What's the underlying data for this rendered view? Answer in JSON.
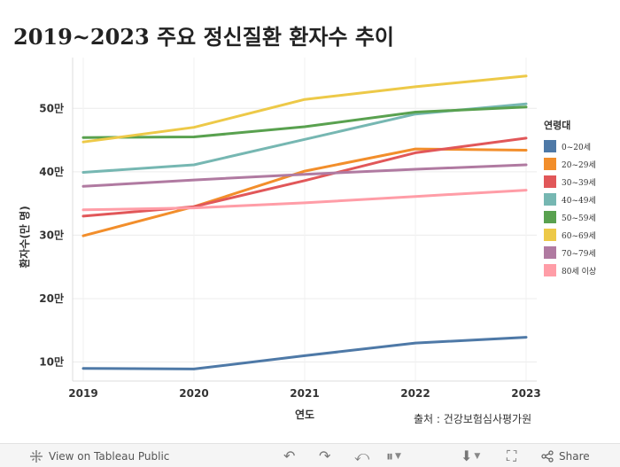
{
  "title": "2019~2023 주요 정신질환 환자수 추이",
  "source": "출처 : 건강보험심사평가원",
  "toolbar": {
    "view_label": "View on Tableau Public",
    "share_label": "Share"
  },
  "chart_data": {
    "type": "line",
    "title": "2019~2023 주요 정신질환 환자수 추이",
    "xlabel": "연도",
    "ylabel": "환자수(만 명)",
    "x": [
      2019,
      2020,
      2021,
      2022,
      2023
    ],
    "ylim": [
      7,
      58
    ],
    "yticks": [
      10,
      20,
      30,
      40,
      50
    ],
    "ytick_labels": [
      "10만",
      "20만",
      "30만",
      "40만",
      "50만"
    ],
    "xtick_labels": [
      "2019",
      "2020",
      "2021",
      "2022",
      "2023"
    ],
    "grid": true,
    "legend_position": "right",
    "legend_title": "연령대",
    "series": [
      {
        "name": "0~20세",
        "color": "#4e79a7",
        "values": [
          9.0,
          8.9,
          11.0,
          13.0,
          13.9
        ]
      },
      {
        "name": "20~29세",
        "color": "#f28e2b",
        "values": [
          29.9,
          34.5,
          40.1,
          43.6,
          43.4
        ]
      },
      {
        "name": "30~39세",
        "color": "#e15759",
        "values": [
          33.0,
          34.5,
          38.6,
          43.0,
          45.3
        ]
      },
      {
        "name": "40~49세",
        "color": "#76b7b2",
        "values": [
          39.9,
          41.1,
          45.1,
          49.1,
          50.7
        ]
      },
      {
        "name": "50~59세",
        "color": "#59a14f",
        "values": [
          45.4,
          45.5,
          47.1,
          49.4,
          50.2
        ]
      },
      {
        "name": "60~69세",
        "color": "#edc948",
        "values": [
          44.7,
          47.0,
          51.4,
          53.4,
          55.1
        ]
      },
      {
        "name": "70~79세",
        "color": "#b07aa1",
        "values": [
          37.7,
          38.7,
          39.6,
          40.4,
          41.1
        ]
      },
      {
        "name": "80세 이상",
        "color": "#ff9da7",
        "values": [
          34.0,
          34.3,
          35.1,
          36.1,
          37.1
        ]
      }
    ]
  }
}
